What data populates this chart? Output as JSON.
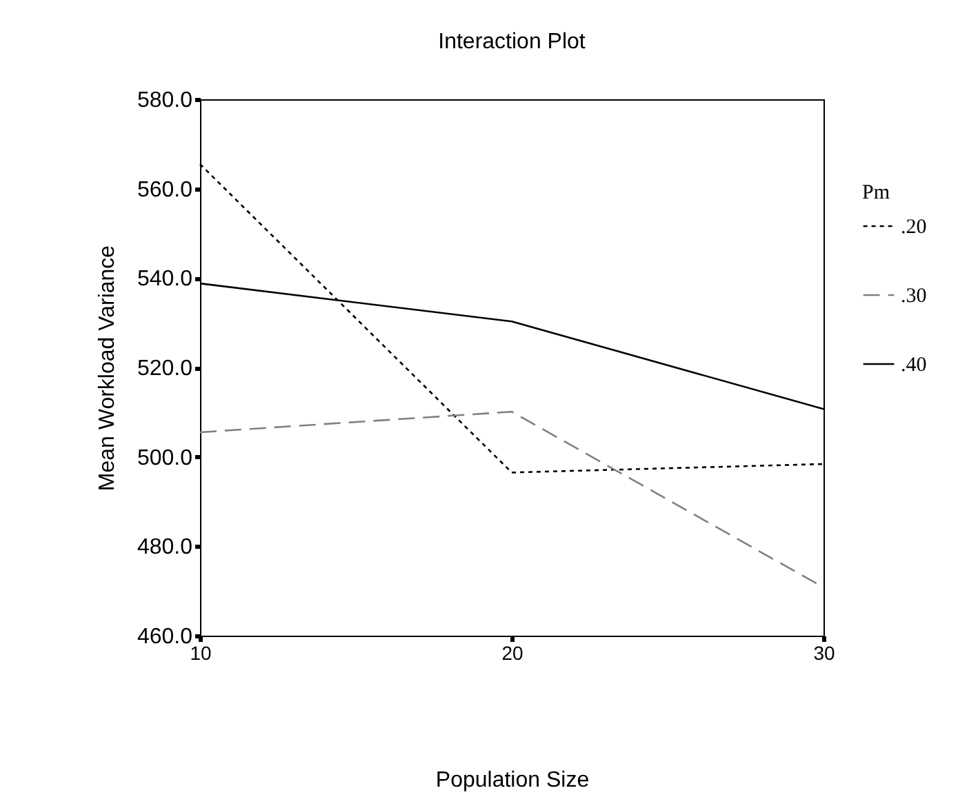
{
  "chart_data": {
    "type": "line",
    "title": "Interaction Plot",
    "xlabel": "Population Size",
    "ylabel": "Mean Workload Variance",
    "legend_title": "Pm",
    "x": [
      10,
      20,
      30
    ],
    "xlim": [
      10,
      30
    ],
    "xticks": [
      10,
      20,
      30
    ],
    "ylim": [
      460,
      580
    ],
    "yticks": [
      {
        "value": 460,
        "label": "460.0"
      },
      {
        "value": 480,
        "label": "480.0"
      },
      {
        "value": 500,
        "label": "500.0"
      },
      {
        "value": 520,
        "label": "520.0"
      },
      {
        "value": 540,
        "label": "540.0"
      },
      {
        "value": 560,
        "label": "560.0"
      },
      {
        "value": 580,
        "label": "580.0"
      }
    ],
    "grid": false,
    "legend": "right",
    "marker": "none",
    "series": [
      {
        "name": ".20",
        "color": "#000000",
        "line_style": "dotted",
        "values": [
          565.5,
          496.5,
          498.4
        ]
      },
      {
        "name": ".30",
        "color": "#808080",
        "line_style": "dashed",
        "values": [
          505.5,
          510.1,
          470.8
        ]
      },
      {
        "name": ".40",
        "color": "#000000",
        "line_style": "solid",
        "values": [
          538.8,
          530.3,
          510.7
        ]
      }
    ]
  }
}
